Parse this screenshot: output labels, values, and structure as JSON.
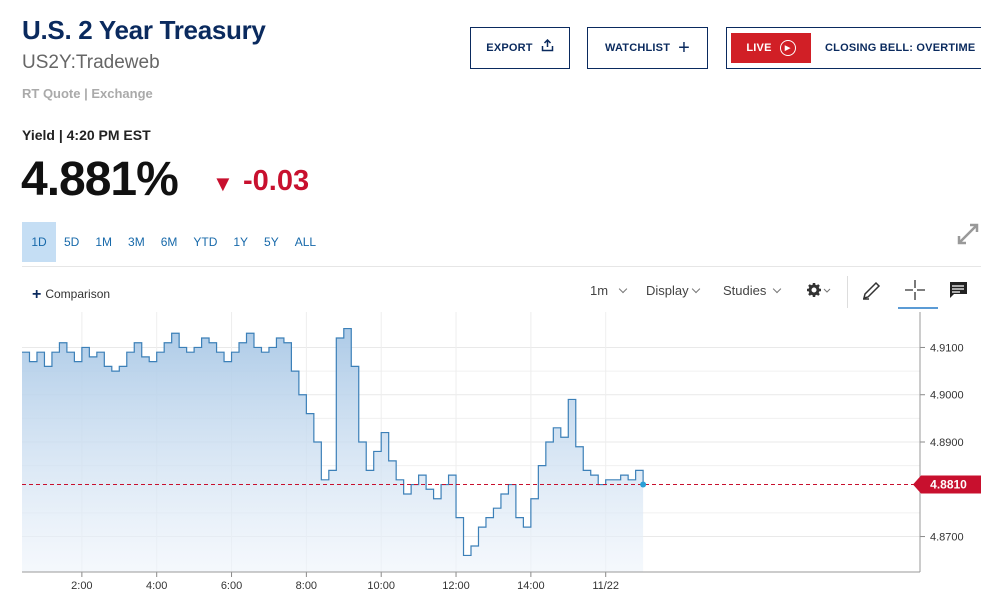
{
  "header": {
    "title": "U.S. 2 Year Treasury",
    "symbol": "US2Y:Tradeweb",
    "quote_meta": "RT Quote | Exchange",
    "export_label": "EXPORT",
    "watchlist_label": "WATCHLIST",
    "live_label": "LIVE",
    "live_program": "CLOSING BELL: OVERTIME",
    "live_color": "#d11f26"
  },
  "quote": {
    "yield_label": "Yield | 4:20 PM EST",
    "price": "4.881%",
    "change": "-0.03",
    "change_color": "#c8102e",
    "change_icon": "triangle-down-icon"
  },
  "ranges": [
    {
      "label": "1D",
      "active": true
    },
    {
      "label": "5D",
      "active": false
    },
    {
      "label": "1M",
      "active": false
    },
    {
      "label": "3M",
      "active": false
    },
    {
      "label": "6M",
      "active": false
    },
    {
      "label": "YTD",
      "active": false
    },
    {
      "label": "1Y",
      "active": false
    },
    {
      "label": "5Y",
      "active": false
    },
    {
      "label": "ALL",
      "active": false
    }
  ],
  "toolbar": {
    "comparison_label": "Comparison",
    "interval_label": "1m",
    "display_label": "Display",
    "studies_label": "Studies",
    "icons": [
      "gear-icon",
      "pencil-icon",
      "crosshair-icon",
      "comment-icon"
    ]
  },
  "chart_data": {
    "type": "area",
    "x_tick_labels": [
      "2:00",
      "4:00",
      "6:00",
      "8:00",
      "10:00",
      "12:00",
      "14:00",
      "11/22"
    ],
    "y_tick_labels": [
      "4.9100",
      "4.9000",
      "4.8900",
      "4.8700"
    ],
    "y_ticks": [
      4.91,
      4.9,
      4.89,
      4.87
    ],
    "ylim": [
      4.8625,
      4.9175
    ],
    "xlim": [
      0.4,
      24.4
    ],
    "last_value_label": "4.8810",
    "last_value": 4.881,
    "last_value_color": "#c8102e",
    "line_color": "#3c80b8",
    "grid": true,
    "x": [
      0.4,
      0.6,
      0.8,
      1.0,
      1.2,
      1.4,
      1.6,
      1.8,
      2.0,
      2.2,
      2.4,
      2.6,
      2.8,
      3.0,
      3.2,
      3.4,
      3.6,
      3.8,
      4.0,
      4.2,
      4.4,
      4.6,
      4.8,
      5.0,
      5.2,
      5.4,
      5.6,
      5.8,
      6.0,
      6.2,
      6.4,
      6.6,
      6.8,
      7.0,
      7.2,
      7.4,
      7.6,
      7.8,
      8.0,
      8.2,
      8.4,
      8.6,
      8.8,
      9.0,
      9.2,
      9.4,
      9.6,
      9.8,
      10.0,
      10.2,
      10.4,
      10.6,
      10.8,
      11.0,
      11.2,
      11.4,
      11.6,
      11.8,
      12.0,
      12.2,
      12.4,
      12.6,
      12.8,
      13.0,
      13.2,
      13.4,
      13.6,
      13.8,
      14.0,
      14.2,
      14.4,
      14.6,
      14.8,
      15.0,
      15.2,
      15.4,
      15.6,
      15.8,
      16.0,
      16.2,
      16.4,
      16.6,
      16.8,
      17.0
    ],
    "values": [
      4.909,
      4.907,
      4.909,
      4.906,
      4.909,
      4.911,
      4.909,
      4.907,
      4.91,
      4.908,
      4.909,
      4.906,
      4.905,
      4.906,
      4.909,
      4.911,
      4.908,
      4.907,
      4.909,
      4.911,
      4.913,
      4.91,
      4.909,
      4.91,
      4.912,
      4.911,
      4.909,
      4.907,
      4.909,
      4.911,
      4.913,
      4.91,
      4.909,
      4.91,
      4.912,
      4.911,
      4.905,
      4.9,
      4.896,
      4.89,
      4.882,
      4.884,
      4.912,
      4.914,
      4.906,
      4.89,
      4.884,
      4.888,
      4.892,
      4.886,
      4.882,
      4.879,
      4.881,
      4.883,
      4.88,
      4.878,
      4.881,
      4.883,
      4.874,
      4.866,
      4.868,
      4.872,
      4.874,
      4.876,
      4.879,
      4.881,
      4.874,
      4.872,
      4.878,
      4.885,
      4.89,
      4.893,
      4.891,
      4.899,
      4.889,
      4.884,
      4.883,
      4.881,
      4.882,
      4.882,
      4.883,
      4.882,
      4.884,
      4.881
    ]
  }
}
